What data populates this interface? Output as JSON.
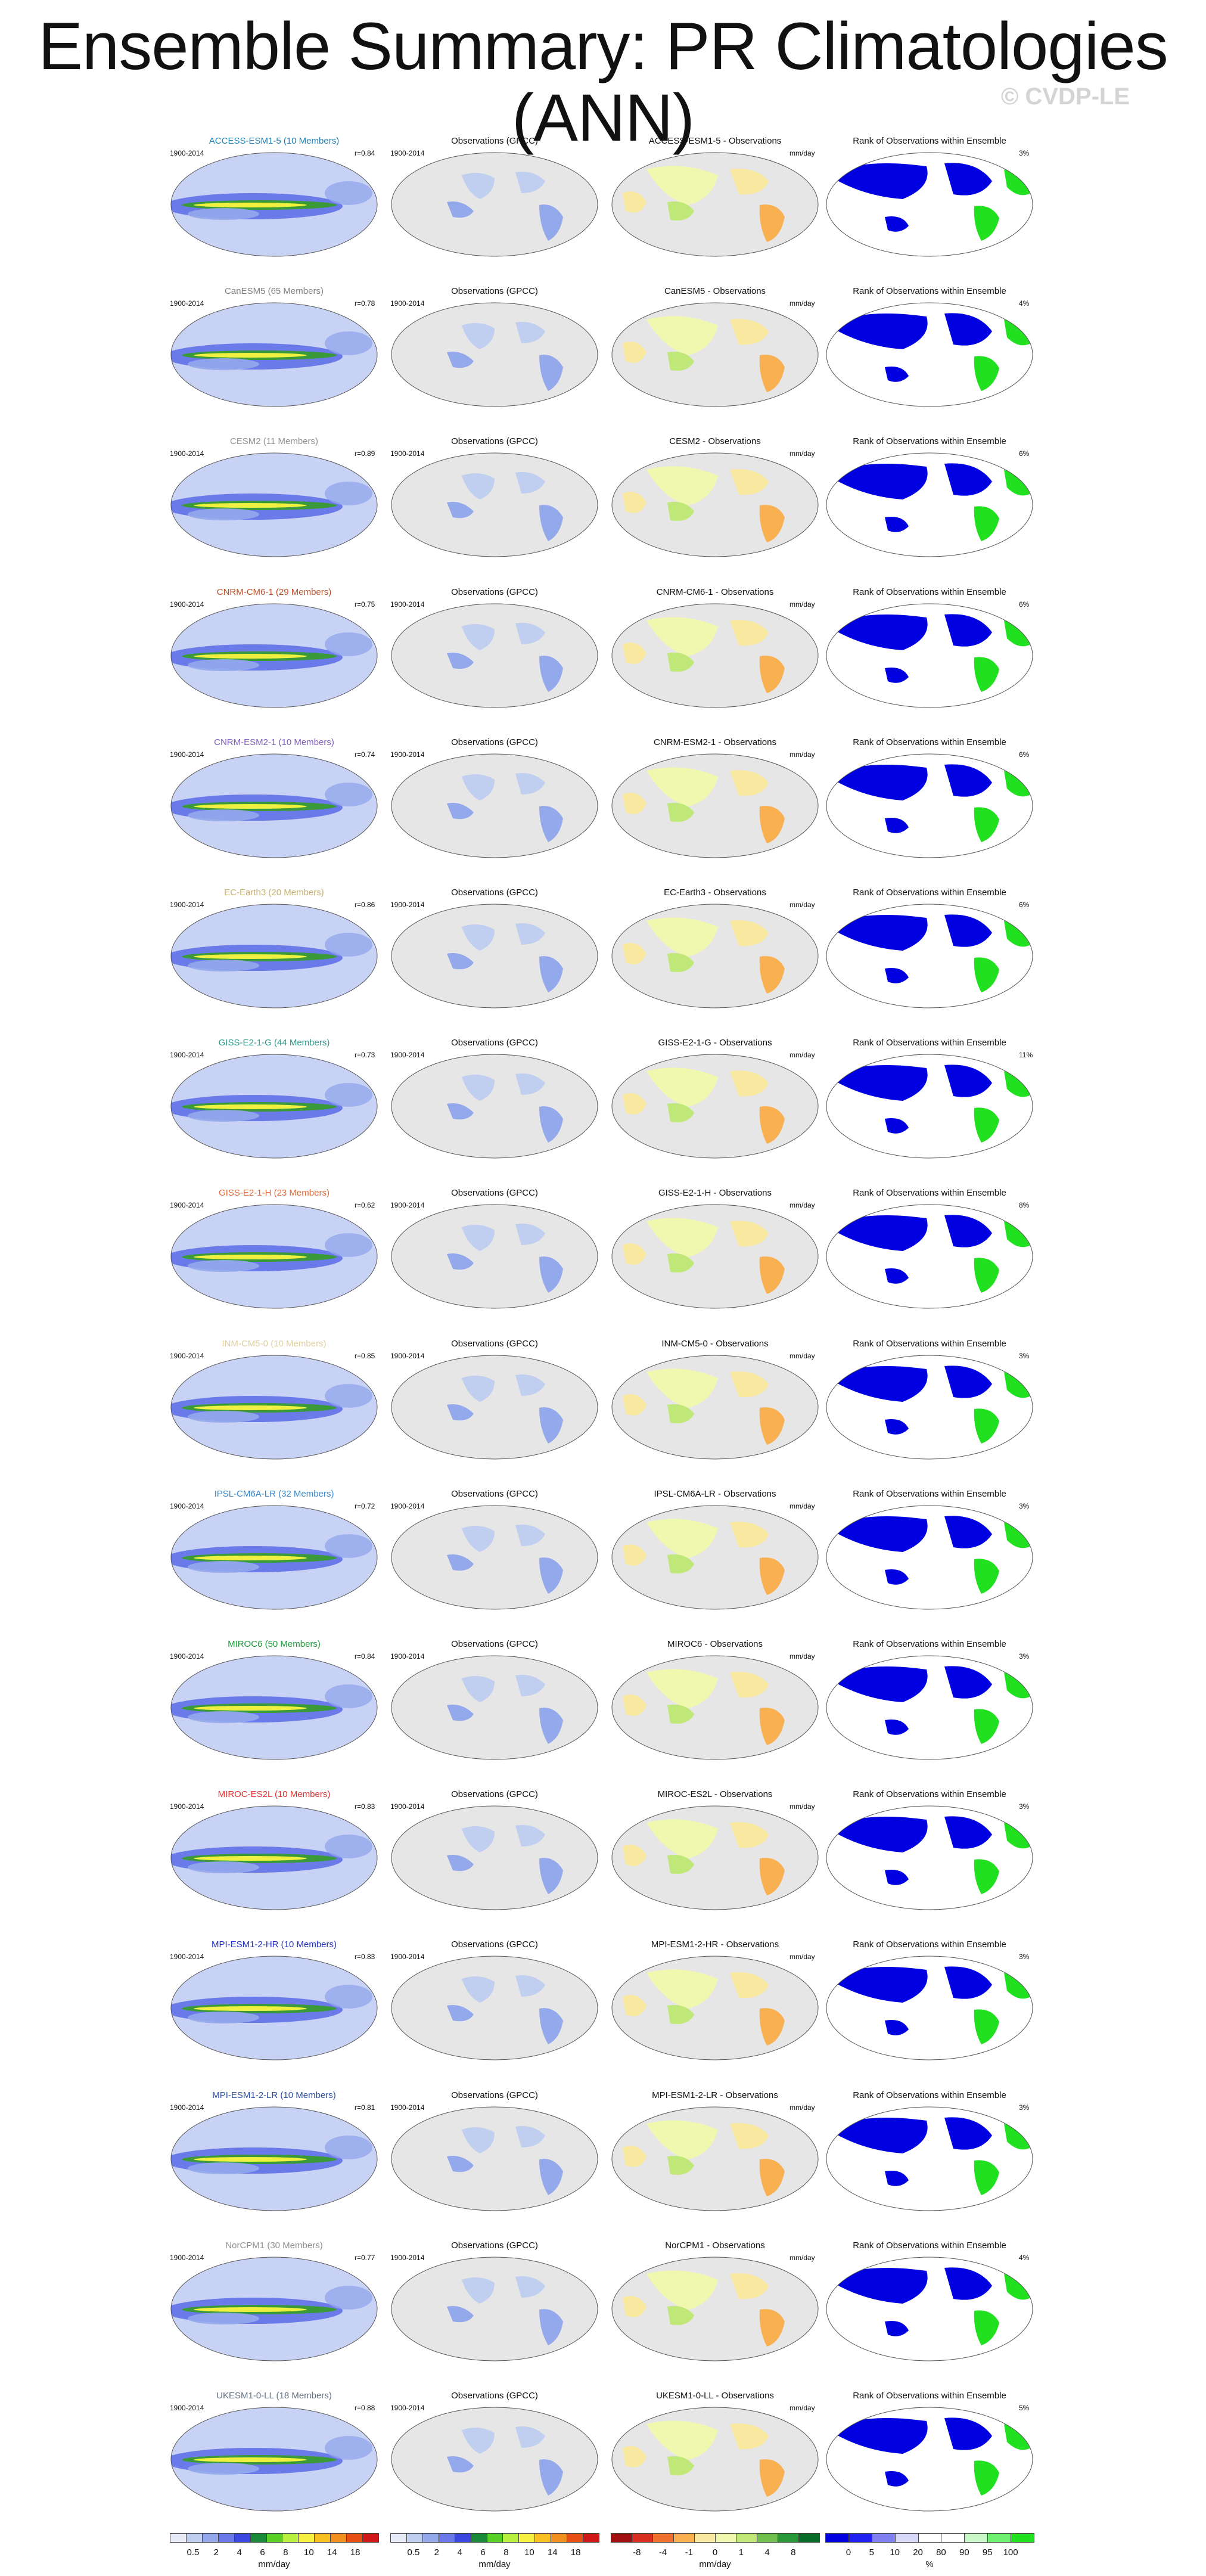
{
  "page": {
    "title": "Ensemble Summary: PR Climatologies (ANN)",
    "watermark": "© CVDP-LE",
    "column_titles": {
      "obs": "Observations (GPCC)",
      "rank": "Rank of Observations within Ensemble",
      "diff_suffix": " - Observations"
    },
    "period": "1900-2014",
    "diff_units": "mm/day"
  },
  "rows": [
    {
      "model": "ACCESS-ESM1-5",
      "members": "(10 Members)",
      "color": "#1f7fb0",
      "r": "r=0.84",
      "rank_pct": "3%"
    },
    {
      "model": "CanESM5",
      "members": "(65 Members)",
      "color": "#808080",
      "r": "r=0.78",
      "rank_pct": "4%"
    },
    {
      "model": "CESM2",
      "members": "(11 Members)",
      "color": "#909090",
      "r": "r=0.89",
      "rank_pct": "6%"
    },
    {
      "model": "CNRM-CM6-1",
      "members": "(29 Members)",
      "color": "#c0502a",
      "r": "r=0.75",
      "rank_pct": "6%"
    },
    {
      "model": "CNRM-ESM2-1",
      "members": "(10 Members)",
      "color": "#8060c0",
      "r": "r=0.74",
      "rank_pct": "6%"
    },
    {
      "model": "EC-Earth3",
      "members": "(20 Members)",
      "color": "#c8b070",
      "r": "r=0.86",
      "rank_pct": "6%"
    },
    {
      "model": "GISS-E2-1-G",
      "members": "(44 Members)",
      "color": "#2f9a8a",
      "r": "r=0.73",
      "rank_pct": "11%"
    },
    {
      "model": "GISS-E2-1-H",
      "members": "(23 Members)",
      "color": "#e06a3a",
      "r": "r=0.62",
      "rank_pct": "8%"
    },
    {
      "model": "INM-CM5-0",
      "members": "(10 Members)",
      "color": "#e0d0a0",
      "r": "r=0.85",
      "rank_pct": "3%"
    },
    {
      "model": "IPSL-CM6A-LR",
      "members": "(32 Members)",
      "color": "#3a8ad0",
      "r": "r=0.72",
      "rank_pct": "3%"
    },
    {
      "model": "MIROC6",
      "members": "(50 Members)",
      "color": "#1a9a3a",
      "r": "r=0.84",
      "rank_pct": "3%"
    },
    {
      "model": "MIROC-ES2L",
      "members": "(10 Members)",
      "color": "#e03030",
      "r": "r=0.83",
      "rank_pct": "3%"
    },
    {
      "model": "MPI-ESM1-2-HR",
      "members": "(10 Members)",
      "color": "#2030c0",
      "r": "r=0.83",
      "rank_pct": "3%"
    },
    {
      "model": "MPI-ESM1-2-LR",
      "members": "(10 Members)",
      "color": "#3050a0",
      "r": "r=0.81",
      "rank_pct": "3%"
    },
    {
      "model": "NorCPM1",
      "members": "(30 Members)",
      "color": "#909090",
      "r": "r=0.77",
      "rank_pct": "4%"
    },
    {
      "model": "UKESM1-0-LL",
      "members": "(18 Members)",
      "color": "#607080",
      "r": "r=0.88",
      "rank_pct": "5%"
    }
  ],
  "colorbars": [
    {
      "ticks": [
        "0.5",
        "2",
        "4",
        "6",
        "8",
        "10",
        "14",
        "18"
      ],
      "units": "mm/day",
      "colors": [
        "#e8ecf8",
        "#c0cef0",
        "#94a8ec",
        "#6a78e8",
        "#3a48e0",
        "#1a8a3a",
        "#58d028",
        "#b8f040",
        "#f8f040",
        "#f8c020",
        "#f09020",
        "#e85018",
        "#d01818"
      ]
    },
    {
      "ticks": [
        "0.5",
        "2",
        "4",
        "6",
        "8",
        "10",
        "14",
        "18"
      ],
      "units": "mm/day",
      "colors": [
        "#e8ecf8",
        "#c0cef0",
        "#94a8ec",
        "#6a78e8",
        "#3a48e0",
        "#1a8a3a",
        "#58d028",
        "#b8f040",
        "#f8f040",
        "#f8c020",
        "#f09020",
        "#e85018",
        "#d01818"
      ]
    },
    {
      "ticks": [
        "-8",
        "-4",
        "-1",
        "0",
        "1",
        "4",
        "8"
      ],
      "units": "mm/day",
      "colors": [
        "#a01010",
        "#d83020",
        "#f07030",
        "#f8b050",
        "#f8e8a0",
        "#f0f8b0",
        "#c0e878",
        "#70c050",
        "#289838",
        "#0a6a28"
      ]
    },
    {
      "ticks": [
        "0",
        "5",
        "10",
        "20",
        "80",
        "90",
        "95",
        "100"
      ],
      "units": "%",
      "colors": [
        "#0000e0",
        "#2020f0",
        "#8080f0",
        "#d8d8f8",
        "#ffffff",
        "#ffffff",
        "#c8f8c8",
        "#70f070",
        "#20e020"
      ]
    }
  ]
}
